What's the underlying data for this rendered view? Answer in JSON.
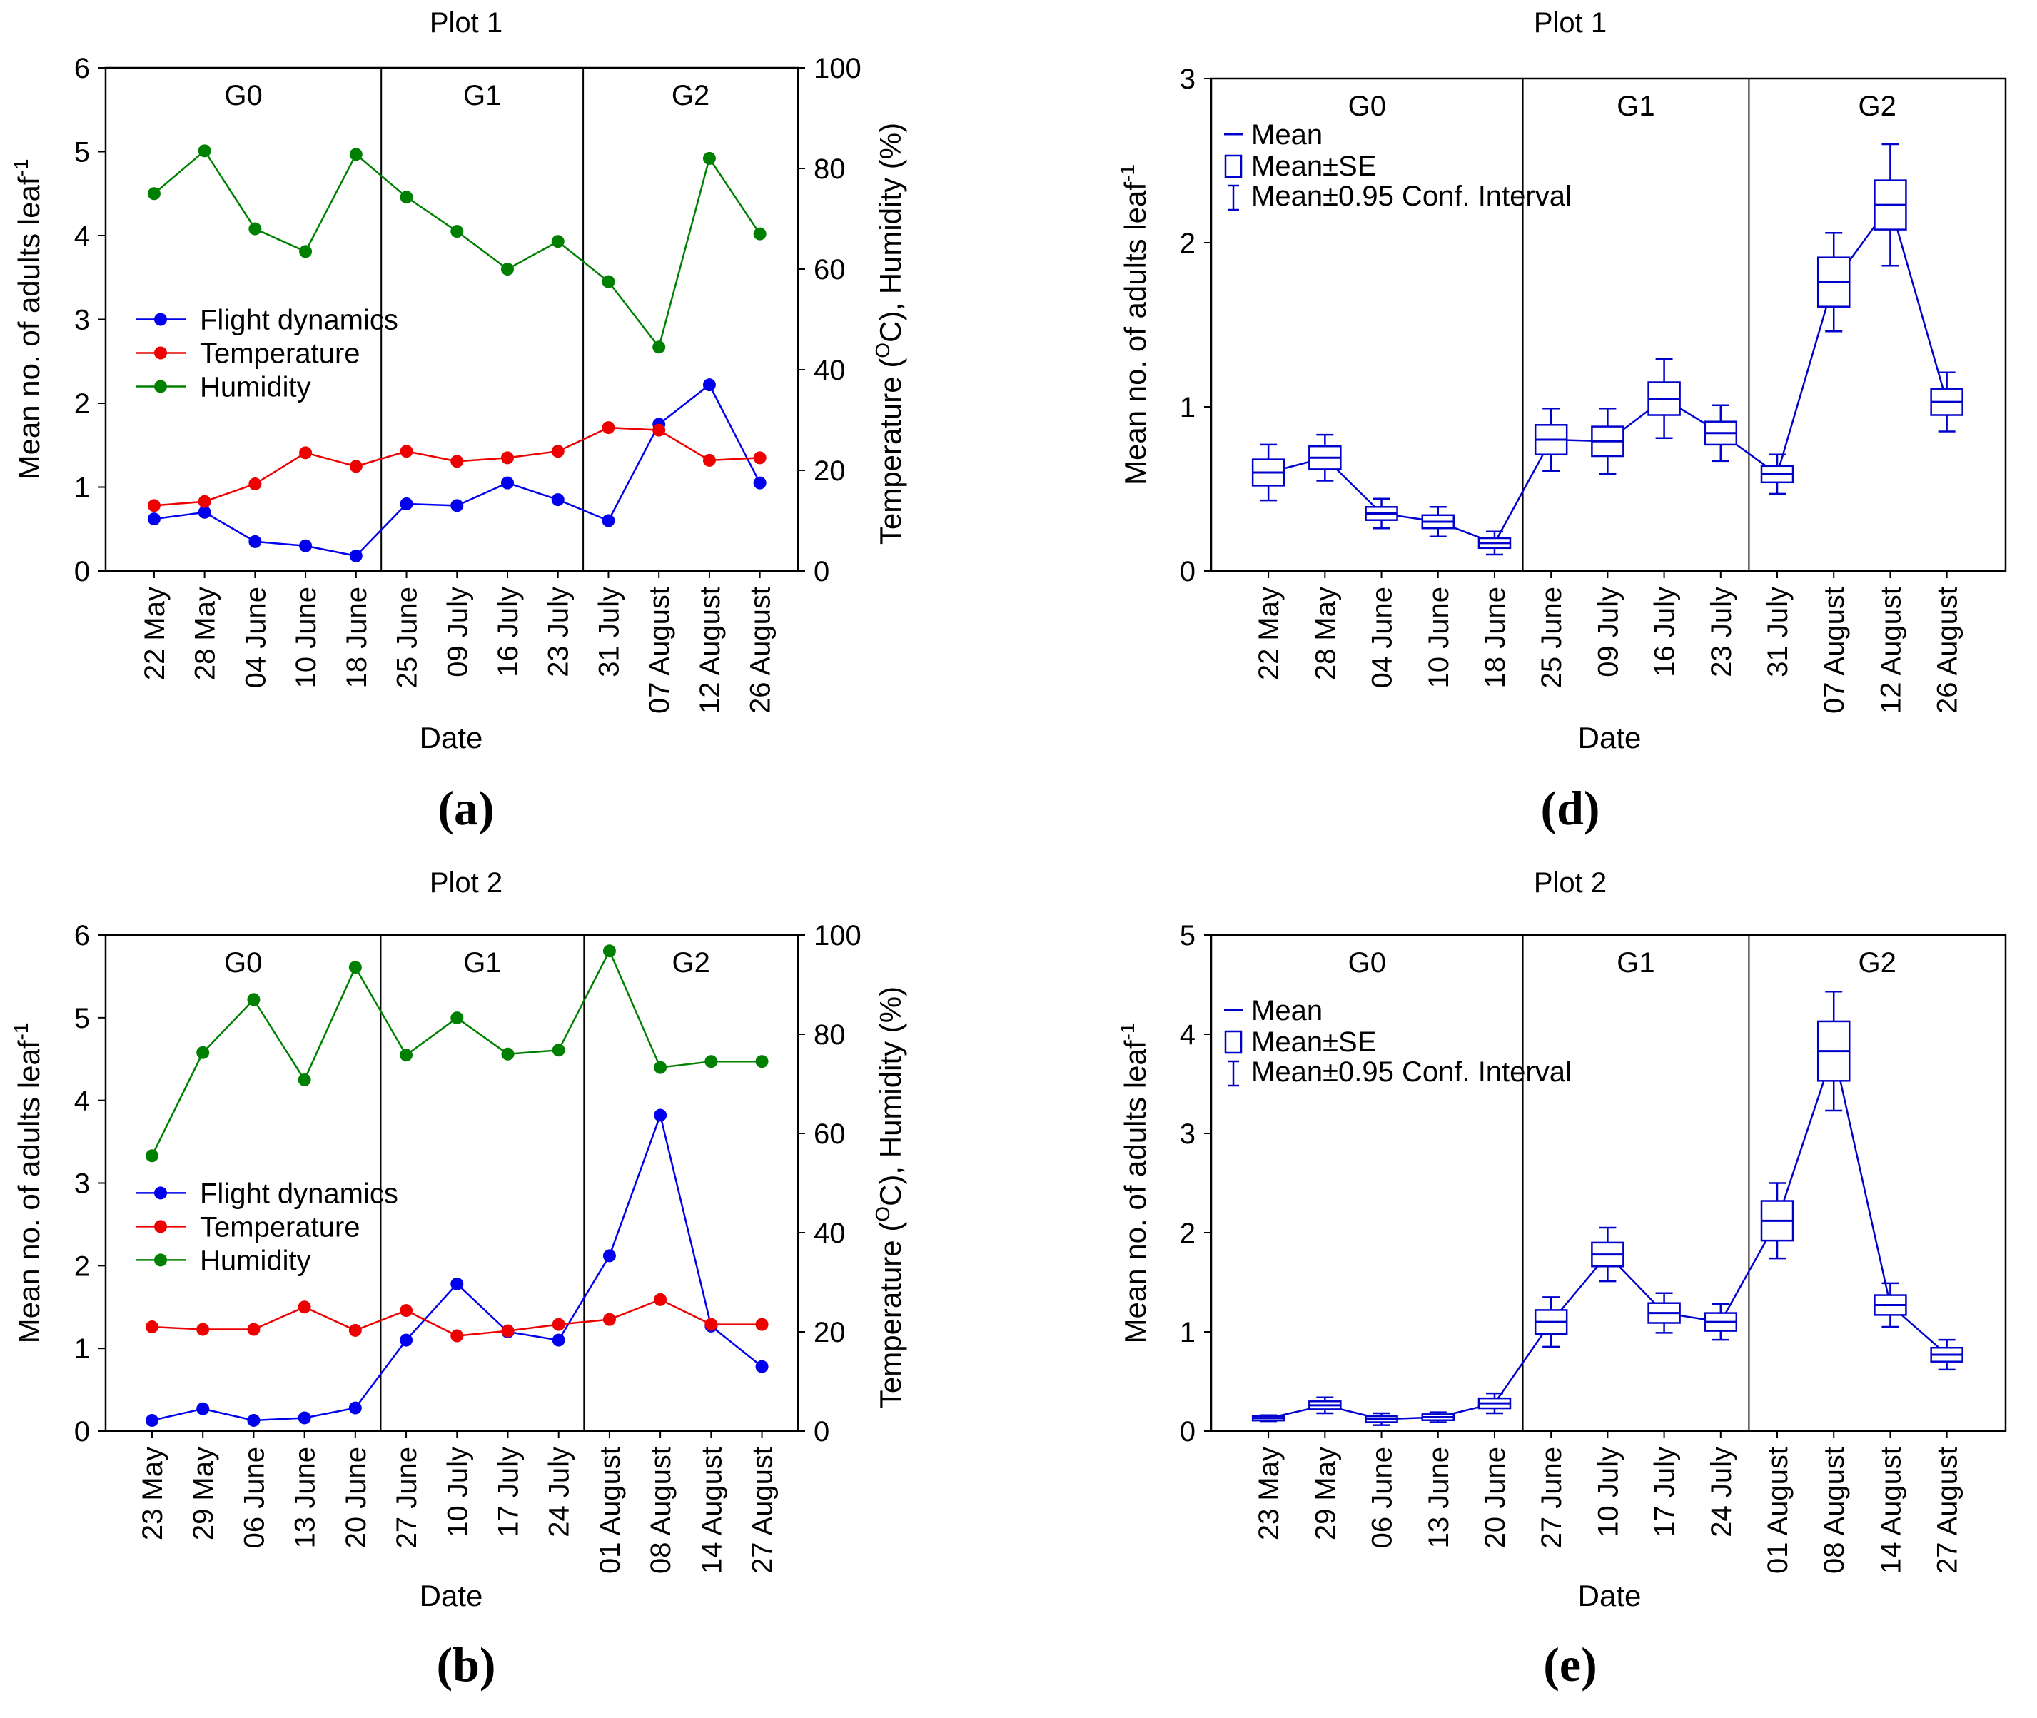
{
  "chart_data": [
    {
      "id": "a",
      "type": "line",
      "panel_label": "(a)",
      "title": "Plot 1",
      "xlabel": "Date",
      "ylabel": "Mean no. of adults leaf",
      "ylabel_sup": "-1",
      "y2label_pre": "Temperature (",
      "y2label_sup": "O",
      "y2label_post": "C), Humidity (%)",
      "categories": [
        "22 May",
        "28 May",
        "04 June",
        "10 June",
        "18 June",
        "25 June",
        "09 July",
        "16 July",
        "23 July",
        "31 July",
        "07 August",
        "12 August",
        "26 August"
      ],
      "ylim": [
        0,
        6
      ],
      "yticks": [
        "0",
        "1",
        "2",
        "3",
        "4",
        "5",
        "6"
      ],
      "y2lim": [
        0,
        100
      ],
      "y2ticks": [
        "0",
        "20",
        "40",
        "60",
        "80",
        "100"
      ],
      "groups": [
        {
          "label": "G0",
          "start": 0,
          "end": 4
        },
        {
          "label": "G1",
          "start": 5,
          "end": 8
        },
        {
          "label": "G2",
          "start": 9,
          "end": 12
        }
      ],
      "legend_position": "left-middle",
      "series": [
        {
          "name": "Flight dynamics",
          "axis": "left",
          "color": "#0000ee",
          "values": [
            0.62,
            0.7,
            0.35,
            0.3,
            0.18,
            0.8,
            0.78,
            1.05,
            0.85,
            0.6,
            1.75,
            2.22,
            1.05
          ]
        },
        {
          "name": "Temperature",
          "axis": "right",
          "color": "#ee0000",
          "values": [
            13,
            13.8,
            17.3,
            23.5,
            20.8,
            23.8,
            21.8,
            22.5,
            23.8,
            28.5,
            28,
            22,
            22.5
          ]
        },
        {
          "name": "Humidity",
          "axis": "right",
          "color": "#008000",
          "values": [
            75,
            83.5,
            68,
            63.5,
            82.8,
            74.3,
            67.5,
            60,
            65.5,
            57.5,
            44.5,
            82,
            67
          ]
        }
      ]
    },
    {
      "id": "b",
      "type": "line",
      "panel_label": "(b)",
      "title": "Plot 2",
      "xlabel": "Date",
      "ylabel": "Mean no. of adults leaf",
      "ylabel_sup": "-1",
      "y2label_pre": "Temperature (",
      "y2label_sup": "O",
      "y2label_post": "C), Humidity (%)",
      "categories": [
        "23 May",
        "29 May",
        "06 June",
        "13 June",
        "20 June",
        "27 June",
        "10 July",
        "17 July",
        "24 July",
        "01 August",
        "08 August",
        "14 August",
        "27 August"
      ],
      "ylim": [
        0,
        6
      ],
      "yticks": [
        "0",
        "1",
        "2",
        "3",
        "4",
        "5",
        "6"
      ],
      "y2lim": [
        0,
        100
      ],
      "y2ticks": [
        "0",
        "20",
        "40",
        "60",
        "80",
        "100"
      ],
      "groups": [
        {
          "label": "G0",
          "start": 0,
          "end": 4
        },
        {
          "label": "G1",
          "start": 5,
          "end": 8
        },
        {
          "label": "G2",
          "start": 9,
          "end": 12
        }
      ],
      "legend_position": "left-middle",
      "series": [
        {
          "name": "Flight dynamics",
          "axis": "left",
          "color": "#0000ee",
          "values": [
            0.13,
            0.27,
            0.13,
            0.16,
            0.28,
            1.1,
            1.78,
            1.2,
            1.1,
            2.12,
            3.82,
            1.27,
            0.78
          ]
        },
        {
          "name": "Temperature",
          "axis": "right",
          "color": "#ee0000",
          "values": [
            21,
            20.5,
            20.5,
            25,
            20.3,
            24.3,
            19.2,
            20.2,
            21.5,
            22.5,
            26.5,
            21.5,
            21.5
          ]
        },
        {
          "name": "Humidity",
          "axis": "right",
          "color": "#008000",
          "values": [
            55.5,
            76.3,
            87,
            70.8,
            93.5,
            75.8,
            83.3,
            76,
            76.8,
            96.8,
            73.3,
            74.5,
            74.5
          ]
        }
      ]
    },
    {
      "id": "d",
      "type": "box",
      "panel_label": "(d)",
      "title": "Plot 1",
      "xlabel": "Date",
      "ylabel": "Mean no. of adults leaf",
      "ylabel_sup": "-1",
      "categories": [
        "22 May",
        "28 May",
        "04 June",
        "10 June",
        "18 June",
        "25 June",
        "09 July",
        "16 July",
        "23 July",
        "31 July",
        "07 August",
        "12 August",
        "26 August"
      ],
      "ylim": [
        0,
        3
      ],
      "yticks": [
        "0",
        "1",
        "2",
        "3"
      ],
      "groups": [
        {
          "label": "G0",
          "start": 0,
          "end": 4
        },
        {
          "label": "G1",
          "start": 5,
          "end": 8
        },
        {
          "label": "G2",
          "start": 9,
          "end": 12
        }
      ],
      "legend": [
        "Mean",
        "Mean±SE",
        "Mean±0.95 Conf. Interval"
      ],
      "legend_position": "top-left",
      "color": "#0000cc",
      "mean": [
        0.6,
        0.69,
        0.35,
        0.3,
        0.17,
        0.8,
        0.79,
        1.05,
        0.84,
        0.59,
        1.76,
        2.23,
        1.03
      ],
      "se": [
        0.08,
        0.07,
        0.04,
        0.04,
        0.03,
        0.09,
        0.09,
        0.1,
        0.07,
        0.05,
        0.15,
        0.15,
        0.08
      ],
      "ci": [
        0.17,
        0.14,
        0.09,
        0.09,
        0.07,
        0.19,
        0.2,
        0.24,
        0.17,
        0.12,
        0.3,
        0.37,
        0.18
      ]
    },
    {
      "id": "e",
      "type": "box",
      "panel_label": "(e)",
      "title": "Plot 2",
      "xlabel": "Date",
      "ylabel": "Mean no. of adults leaf",
      "ylabel_sup": "-1",
      "categories": [
        "23 May",
        "29 May",
        "06 June",
        "13 June",
        "20 June",
        "27 June",
        "10 July",
        "17 July",
        "24 July",
        "01 August",
        "08 August",
        "14 August",
        "27 August"
      ],
      "ylim": [
        0,
        5
      ],
      "yticks": [
        "0",
        "1",
        "2",
        "3",
        "4",
        "5"
      ],
      "groups": [
        {
          "label": "G0",
          "start": 0,
          "end": 4
        },
        {
          "label": "G1",
          "start": 5,
          "end": 8
        },
        {
          "label": "G2",
          "start": 9,
          "end": 12
        }
      ],
      "legend": [
        "Mean",
        "Mean±SE",
        "Mean±0.95 Conf. Interval"
      ],
      "legend_position": "top-left",
      "color": "#0000cc",
      "mean": [
        0.13,
        0.26,
        0.12,
        0.14,
        0.28,
        1.1,
        1.78,
        1.19,
        1.1,
        2.12,
        3.83,
        1.27,
        0.77
      ],
      "se": [
        0.02,
        0.04,
        0.03,
        0.03,
        0.05,
        0.12,
        0.12,
        0.1,
        0.09,
        0.2,
        0.3,
        0.1,
        0.07
      ],
      "ci": [
        0.03,
        0.08,
        0.06,
        0.05,
        0.1,
        0.25,
        0.27,
        0.2,
        0.18,
        0.38,
        0.6,
        0.22,
        0.15
      ]
    }
  ]
}
